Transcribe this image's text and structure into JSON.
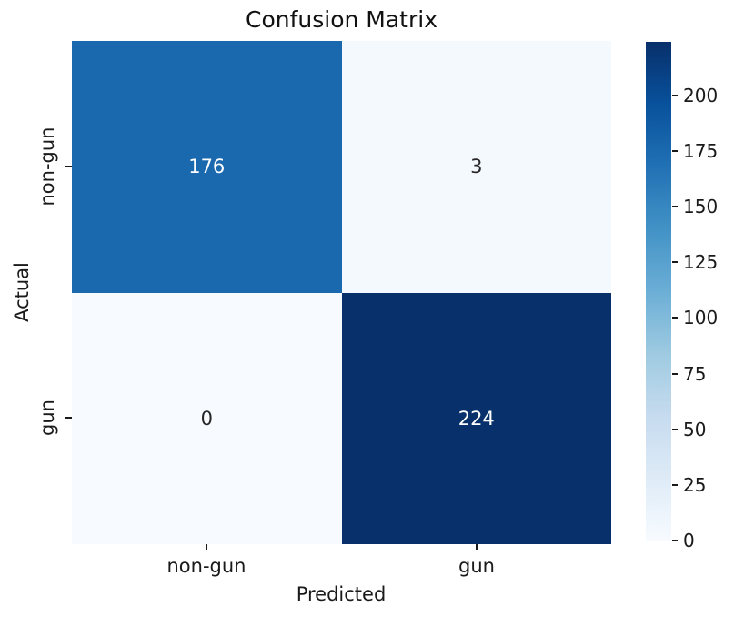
{
  "figure": {
    "title": "Confusion Matrix"
  },
  "chart_data": {
    "type": "heatmap",
    "title": "Confusion Matrix",
    "xlabel": "Predicted",
    "ylabel": "Actual",
    "x_categories": [
      "non-gun",
      "gun"
    ],
    "y_categories": [
      "non-gun",
      "gun"
    ],
    "matrix": [
      [
        176,
        3
      ],
      [
        0,
        224
      ]
    ],
    "vmin": 0,
    "vmax": 224,
    "colormap": "Blues",
    "grid": false,
    "legend_position": "right-colorbar",
    "cell_colors": [
      [
        "#1a68ae",
        "#f4f9fe"
      ],
      [
        "#f7fbff",
        "#08306b"
      ]
    ],
    "cell_text_colors": [
      [
        "#ffffff",
        "#262626"
      ],
      [
        "#262626",
        "#ffffff"
      ]
    ],
    "colormap_stops": [
      "#f7fbff",
      "#deebf7",
      "#c6dbef",
      "#9ecae1",
      "#6baed6",
      "#4292c6",
      "#2171b5",
      "#08519c",
      "#08306b"
    ],
    "colorbar": {
      "tick_labels": [
        "0",
        "25",
        "50",
        "75",
        "100",
        "125",
        "150",
        "175",
        "200"
      ],
      "tick_values": [
        0,
        25,
        50,
        75,
        100,
        125,
        150,
        175,
        200
      ]
    }
  }
}
